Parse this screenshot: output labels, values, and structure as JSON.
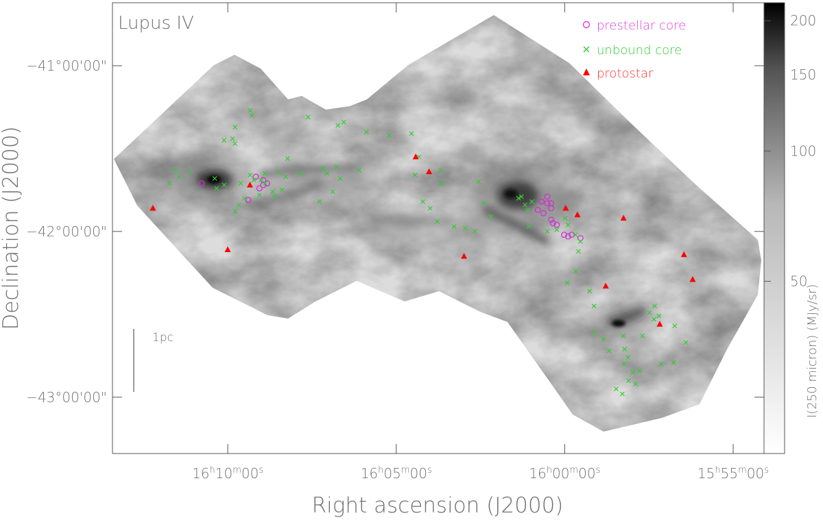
{
  "chart_data": {
    "type": "scatter",
    "title": "Lupus IV",
    "xlabel": "Right ascension (J2000)",
    "ylabel": "Declination (J2000)",
    "colorbar": {
      "label": "I(250 micron) (MJy/sr)",
      "scale": "log",
      "ticks": [
        50,
        100,
        150,
        200
      ],
      "tick_labels": [
        "50",
        "100",
        "150",
        "200"
      ],
      "range": [
        20,
        220
      ],
      "colormap": "white-to-black"
    },
    "x_ticks": [
      {
        "value": 16.16667,
        "label": "16h10m00s"
      },
      {
        "value": 16.08333,
        "label": "16h05m00s"
      },
      {
        "value": 16.0,
        "label": "16h00m00s"
      },
      {
        "value": 15.91667,
        "label": "15h55m00s"
      }
    ],
    "y_ticks": [
      {
        "value": -41.0,
        "label": "−41°00'00\""
      },
      {
        "value": -42.0,
        "label": "−42°00'00\""
      },
      {
        "value": -43.0,
        "label": "−43°00'00\""
      }
    ],
    "xlim": [
      16.2237,
      15.9014
    ],
    "ylim": [
      -43.34,
      -40.62
    ],
    "scale_bar": {
      "label": "1pc"
    },
    "legend": {
      "position": "top-right",
      "entries": [
        {
          "label": "prestellar core",
          "marker": "circle",
          "color": "#e040e0"
        },
        {
          "label": "unbound core",
          "marker": "x",
          "color": "#33cc33"
        },
        {
          "label": "protostar",
          "marker": "triangle",
          "color": "#ff0000"
        }
      ]
    },
    "series": [
      {
        "name": "prestellar core",
        "color": "#cc33cc",
        "marker": "circle",
        "x": [
          16.1796,
          16.1528,
          16.1491,
          16.1472,
          16.1491,
          16.151,
          16.1565,
          16.0105,
          16.0067,
          16.0086,
          16.0114,
          16.0133,
          16.0067,
          16.0086,
          16.0058,
          16.0067,
          16.0039,
          16.0003,
          15.9983,
          15.9966,
          15.9922
        ],
        "y": [
          -41.71,
          -41.67,
          -41.69,
          -41.71,
          -41.72,
          -41.74,
          -41.81,
          -41.89,
          -41.86,
          -41.83,
          -41.82,
          -41.87,
          -41.93,
          -41.79,
          -41.95,
          -41.83,
          -41.96,
          -42.02,
          -42.03,
          -42.02,
          -42.04
        ]
      },
      {
        "name": "unbound core",
        "color": "#33cc33",
        "marker": "x",
        "x": [
          16.1926,
          16.1851,
          16.1954,
          16.1722,
          16.1685,
          16.1908,
          16.1731,
          16.1417,
          16.1306,
          16.138,
          16.1482,
          16.1445,
          16.1584,
          16.1612,
          16.163,
          16.1602,
          16.151,
          16.1436,
          16.1399,
          16.1195,
          16.111,
          16.1176,
          16.1129,
          16.1018,
          16.1148,
          16.1213,
          16.1537,
          16.1556,
          16.1501,
          16.1482,
          16.1371,
          16.1556,
          16.1547,
          16.1631,
          16.1643,
          16.1631,
          16.1685,
          16.1269,
          16.1093,
          16.1122,
          16.0981,
          16.0868,
          16.0758,
          16.0721,
          16.0741,
          16.0702,
          16.0665,
          16.063,
          16.0491,
          16.0547,
          16.0445,
          16.0611,
          16.0611,
          16.0426,
          16.0398,
          16.0365,
          16.0228,
          16.0214,
          16.0196,
          16.0183,
          16.0163,
          16.0177,
          16.0086,
          16.0039,
          15.9946,
          15.9983,
          15.9998,
          15.9922,
          15.9932,
          15.9945,
          15.9988,
          15.9877,
          15.9855,
          15.9856,
          15.9808,
          15.978,
          15.9715,
          15.9663,
          15.9684,
          15.9649,
          15.9745,
          15.9705,
          15.9686,
          15.9558,
          15.9581,
          15.9555,
          15.9534,
          15.9456,
          15.94,
          15.9461,
          15.9522,
          15.963,
          15.9704,
          15.971,
          15.9616
        ],
        "y": [
          -41.63,
          -41.64,
          -41.71,
          -41.74,
          -41.72,
          -41.67,
          -41.68,
          -41.64,
          -41.65,
          -41.67,
          -41.71,
          -41.76,
          -41.8,
          -41.84,
          -41.88,
          -41.71,
          -41.78,
          -41.79,
          -41.75,
          -41.62,
          -41.68,
          -41.65,
          -41.61,
          -41.63,
          -41.76,
          -41.82,
          -41.69,
          -41.66,
          -41.69,
          -41.65,
          -41.56,
          -41.27,
          -41.3,
          -41.37,
          -41.44,
          -41.47,
          -41.45,
          -41.31,
          -41.34,
          -41.36,
          -41.4,
          -41.42,
          -41.41,
          -41.55,
          -41.66,
          -41.82,
          -41.86,
          -41.94,
          -41.98,
          -41.97,
          -42.0,
          -41.71,
          -41.63,
          -41.7,
          -41.83,
          -41.91,
          -41.8,
          -41.79,
          -41.84,
          -41.87,
          -41.82,
          -41.97,
          -42.0,
          -41.99,
          -42.02,
          -41.96,
          -41.92,
          -42.06,
          -42.12,
          -42.24,
          -42.31,
          -42.36,
          -42.45,
          -42.61,
          -42.65,
          -42.72,
          -42.98,
          -42.85,
          -42.9,
          -42.92,
          -42.95,
          -42.8,
          -42.76,
          -42.53,
          -42.49,
          -42.45,
          -42.51,
          -42.57,
          -42.67,
          -42.79,
          -42.8,
          -42.84,
          -42.71,
          -42.63,
          -42.63
        ]
      },
      {
        "name": "protostar",
        "color": "#ff0000",
        "marker": "triangle",
        "x": [
          16.2037,
          16.1667,
          16.1557,
          16.0737,
          16.0671,
          16.0498,
          15.9995,
          15.9937,
          15.9797,
          15.9709,
          15.953,
          15.941,
          15.9367
        ],
        "y": [
          -41.86,
          -42.11,
          -41.72,
          -41.55,
          -41.64,
          -42.15,
          -41.86,
          -41.9,
          -42.33,
          -41.92,
          -42.56,
          -42.14,
          -42.29
        ]
      }
    ]
  }
}
